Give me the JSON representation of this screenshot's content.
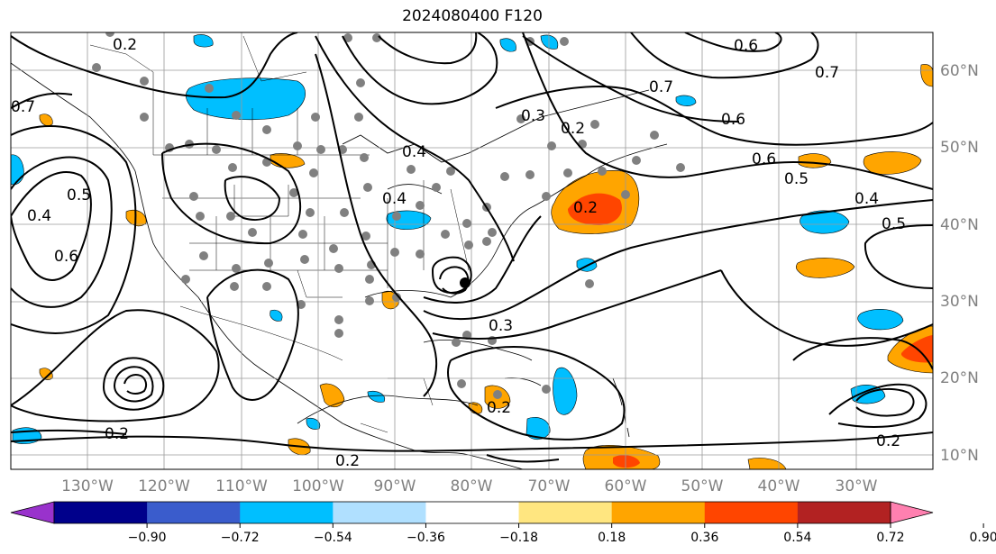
{
  "title": "2024080400 F120",
  "lon_labels": [
    "130°W",
    "120°W",
    "110°W",
    "100°W",
    "90°W",
    "80°W",
    "70°W",
    "60°W",
    "50°W",
    "40°W",
    "30°W"
  ],
  "lat_labels": [
    "60°N",
    "50°N",
    "40°N",
    "30°N",
    "20°N",
    "10°N"
  ],
  "colorbar": {
    "ticks": [
      "−0.90",
      "−0.72",
      "−0.54",
      "−0.36",
      "−0.18",
      "0.18",
      "0.36",
      "0.54",
      "0.72",
      "0.90"
    ],
    "colors": [
      "#9932cc",
      "#00008b",
      "#3a5ccc",
      "#00bfff",
      "#b0e0ff",
      "#ffffff",
      "#ffe680",
      "#ffa500",
      "#ff4500",
      "#b22222",
      "#ff80b0"
    ]
  },
  "contour_labels": [
    {
      "text": "0.2",
      "id": "a"
    },
    {
      "text": "0.2",
      "id": "b"
    },
    {
      "text": "0.2",
      "id": "c"
    },
    {
      "text": "0.2",
      "id": "d"
    },
    {
      "text": "0.2",
      "id": "e"
    },
    {
      "text": "0.3",
      "id": "f"
    },
    {
      "text": "0.3",
      "id": "g"
    },
    {
      "text": "0.4",
      "id": "h"
    },
    {
      "text": "0.4",
      "id": "i"
    },
    {
      "text": "0.4",
      "id": "j"
    },
    {
      "text": "0.4",
      "id": "k"
    },
    {
      "text": "0.5",
      "id": "l"
    },
    {
      "text": "0.5",
      "id": "m"
    },
    {
      "text": "0.5",
      "id": "n"
    },
    {
      "text": "0.6",
      "id": "o"
    },
    {
      "text": "0.6",
      "id": "p"
    },
    {
      "text": "0.6",
      "id": "q"
    },
    {
      "text": "0.6",
      "id": "r"
    },
    {
      "text": "0.7",
      "id": "s"
    },
    {
      "text": "0.7",
      "id": "t"
    },
    {
      "text": "0.7",
      "id": "u"
    },
    {
      "text": "0.2",
      "id": "v"
    },
    {
      "text": "0.2",
      "id": "w"
    }
  ]
}
